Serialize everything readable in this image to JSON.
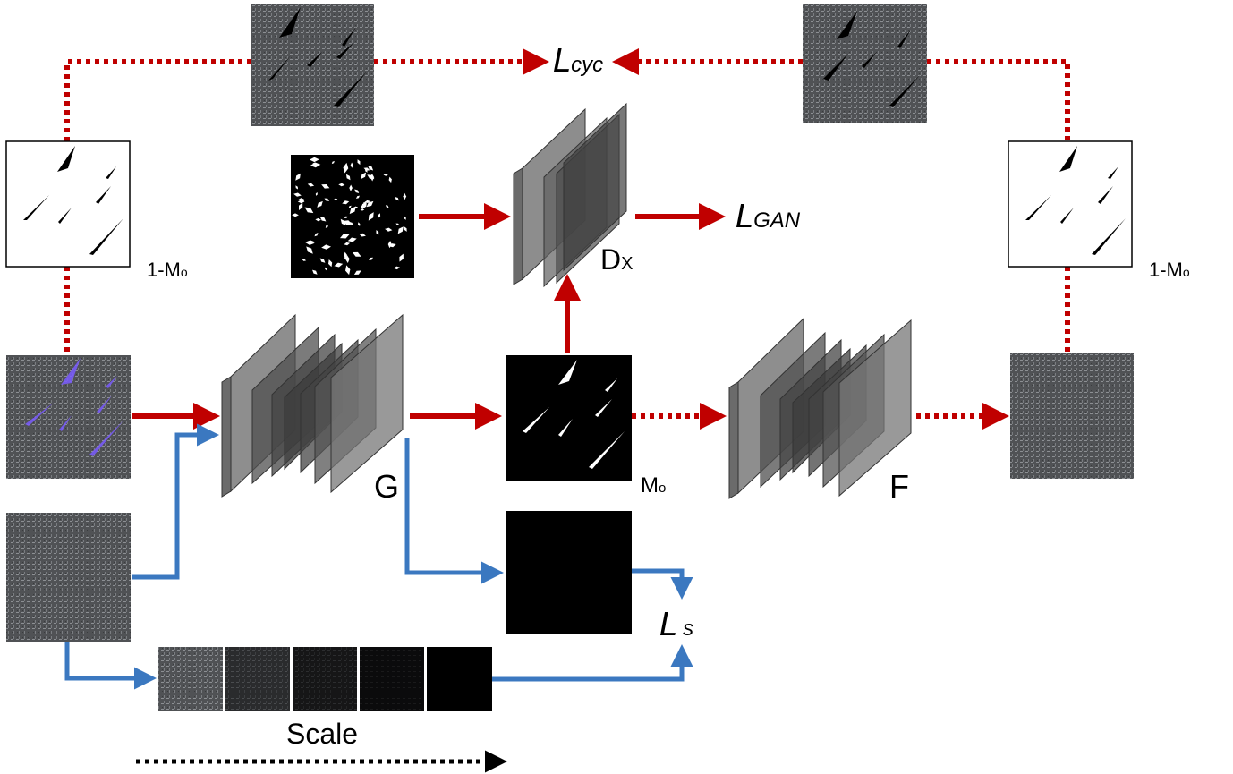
{
  "labels": {
    "generator": "G",
    "inverse_generator": "F",
    "discriminator": "D",
    "discriminator_sub": "X",
    "mask_output": "M",
    "mask_output_sub": "o",
    "inverse_mask_left": "1-M",
    "inverse_mask_left_sub": "o",
    "inverse_mask_right": "1-M",
    "inverse_mask_right_sub": "o",
    "loss_cycle": "L",
    "loss_cycle_sub": "cyc",
    "loss_gan": "L",
    "loss_gan_sub": "GAN",
    "loss_scale": "L",
    "loss_scale_sub": "s",
    "scale": "Scale"
  },
  "colors": {
    "red_arrow": "#c00000",
    "blue_arrow": "#3b78c0",
    "fabric": "#55575a",
    "layer": "#8a8a8a",
    "mark": "#000000"
  }
}
